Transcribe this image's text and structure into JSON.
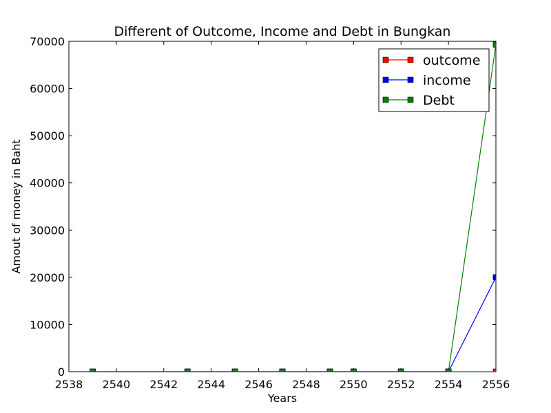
{
  "chart_data": {
    "type": "line",
    "title": "Different of Outcome, Income and Debt in Bungkan",
    "xlabel": "Years",
    "ylabel": "Amout of money in Baht",
    "xlim": [
      2538,
      2556
    ],
    "ylim": [
      0,
      70000
    ],
    "xticks": [
      2538,
      2540,
      2542,
      2544,
      2546,
      2548,
      2550,
      2552,
      2554,
      2556
    ],
    "yticks": [
      0,
      10000,
      20000,
      30000,
      40000,
      50000,
      60000,
      70000
    ],
    "grid": false,
    "legend_position": "top-right",
    "x": [
      2539,
      2543,
      2545,
      2547,
      2549,
      2550,
      2552,
      2554,
      2556
    ],
    "series": [
      {
        "name": "outcome",
        "color": "#ff0000",
        "values": [
          0,
          0,
          0,
          0,
          0,
          0,
          0,
          0,
          0
        ]
      },
      {
        "name": "income",
        "color": "#0000ff",
        "values": [
          0,
          0,
          0,
          0,
          0,
          0,
          0,
          0,
          20000
        ]
      },
      {
        "name": "Debt",
        "color": "#008000",
        "values": [
          0,
          0,
          0,
          0,
          0,
          0,
          0,
          0,
          69300
        ]
      }
    ]
  }
}
